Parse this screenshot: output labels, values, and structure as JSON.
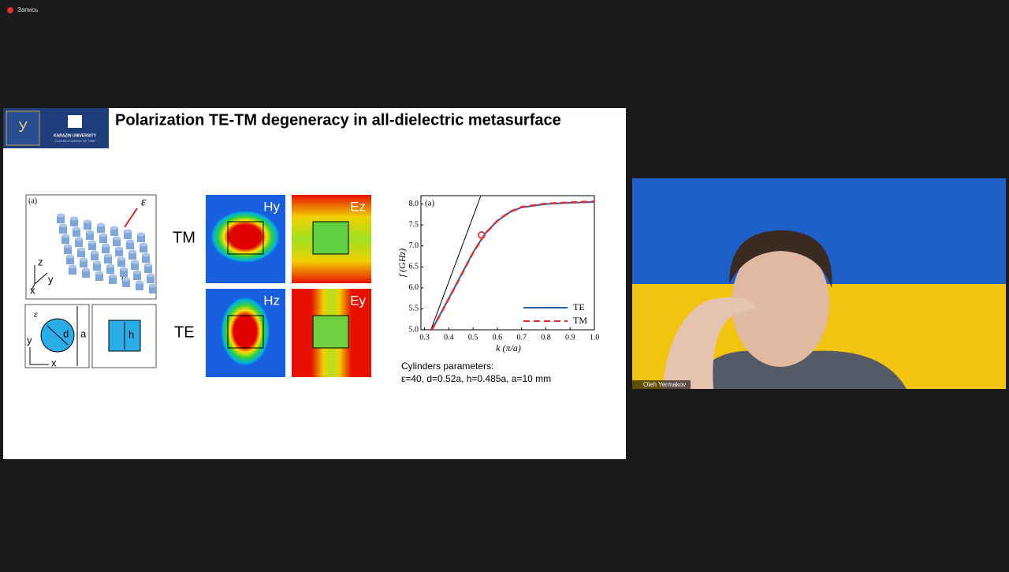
{
  "recording": "Запись",
  "slide": {
    "logo": {
      "university": "KARAZIN UNIVERSITY",
      "motto": "CLASSICS AHEAD OF TIME"
    },
    "title": "Polarization TE-TM degeneracy in all-dielectric metasurface",
    "schematic": {
      "panel_label": "(a)",
      "epsilon": "ε",
      "z": "z",
      "y": "y",
      "x": "x",
      "period": "a",
      "cross_section": {
        "epsilon": "ε",
        "d": "d",
        "a": "a",
        "y": "y",
        "x": "x",
        "h": "h"
      }
    },
    "fields": {
      "rows": [
        "TM",
        "TE"
      ],
      "maps": [
        [
          "Hy",
          "Ez"
        ],
        [
          "Hz",
          "Ey"
        ]
      ]
    },
    "plot": {
      "type": "line",
      "panel_label": "(a)",
      "x_label": "k (π/a)",
      "y_label": "f (GHz)",
      "xlim": [
        0.285,
        1.0
      ],
      "ylim": [
        5.0,
        8.2
      ],
      "xticks": [
        0.3,
        0.4,
        0.5,
        0.6,
        0.7,
        0.8,
        0.9,
        {
          "value": 1.0,
          "label": "1.0"
        }
      ],
      "yticks": [
        {
          "value": 5.0,
          "label": "5.0"
        },
        5.5,
        {
          "value": 6.0,
          "label": "6.0"
        },
        6.5,
        {
          "value": 7.0,
          "label": "7.0"
        },
        7.5,
        {
          "value": 8.0,
          "label": "8.0"
        }
      ],
      "light_line": {
        "x": [
          0.326,
          0.532
        ],
        "y": [
          5.0,
          8.2
        ]
      },
      "x": [
        0.33,
        0.4,
        0.5,
        0.55,
        0.6,
        0.65,
        0.7,
        0.8,
        0.9,
        1.0
      ],
      "series": [
        {
          "name": "TE",
          "color": "#2a5caa",
          "values": [
            5.0,
            5.75,
            6.85,
            7.3,
            7.6,
            7.8,
            7.92,
            8.0,
            8.03,
            8.05
          ]
        },
        {
          "name": "TM",
          "color": "#e8282b",
          "values": [
            5.0,
            5.74,
            6.84,
            7.29,
            7.6,
            7.81,
            7.93,
            8.01,
            8.04,
            8.06
          ]
        }
      ]
    },
    "params_title": "Cylinders parameters:",
    "params": "ε=40, d=0.52a, h=0.485a, a=10 mm"
  },
  "participant": "Oleh Yermakov"
}
